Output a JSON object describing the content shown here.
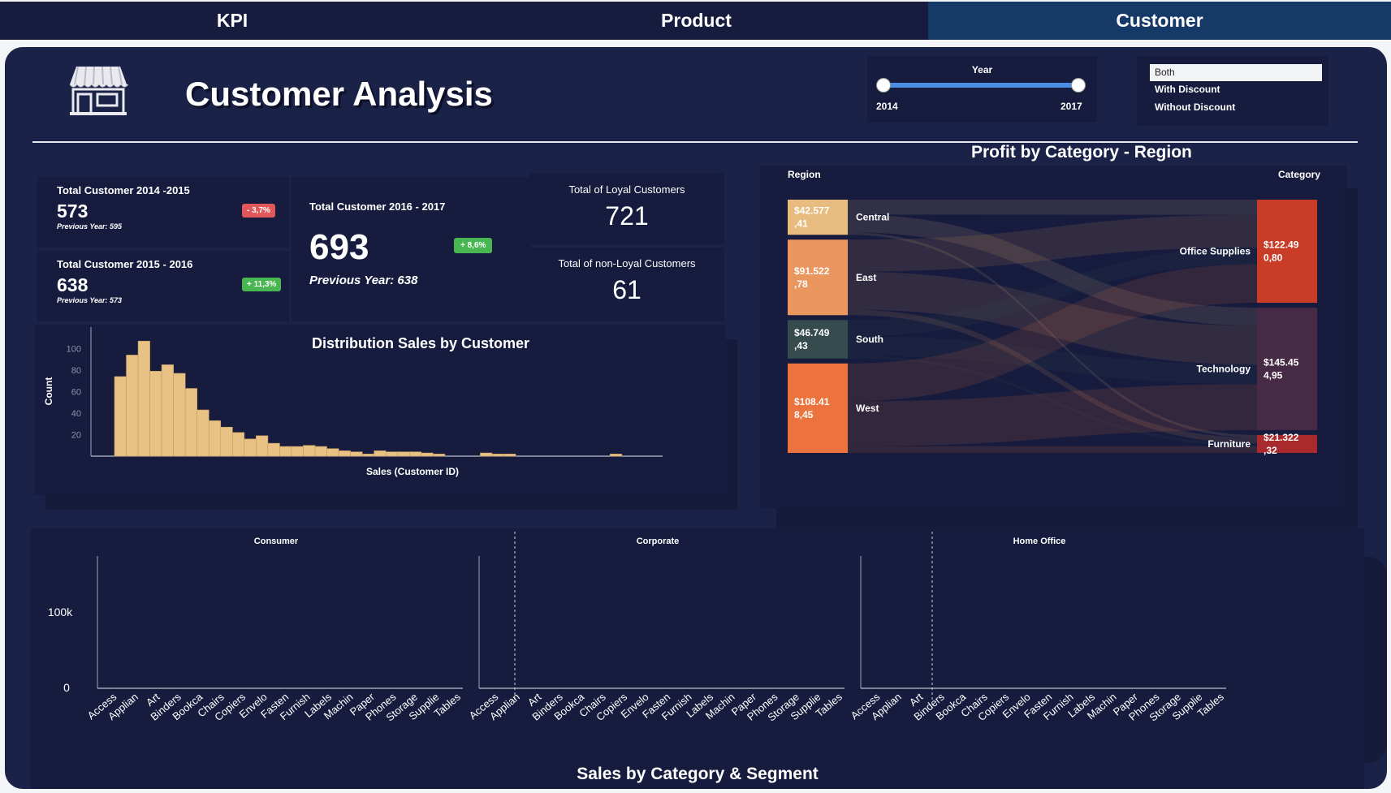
{
  "tabs": [
    {
      "label": "KPI",
      "active": false
    },
    {
      "label": "Product",
      "active": false
    },
    {
      "label": "Customer",
      "active": true
    }
  ],
  "header": {
    "title": "Customer Analysis",
    "store_icon": "store-icon"
  },
  "year_slider": {
    "label": "Year",
    "min_label": "2014",
    "max_label": "2017",
    "start": 2014,
    "end": 2017
  },
  "discount_filter": {
    "options": [
      "Both",
      "With Discount",
      "Without Discount"
    ],
    "selected": "Both"
  },
  "kpis": {
    "c1415": {
      "title": "Total Customer 2014 -2015",
      "value": "573",
      "prev": "Previous Year: 595",
      "change": "- 3,7%"
    },
    "c1516": {
      "title": "Total Customer 2015 - 2016",
      "value": "638",
      "prev": "Previous Year: 573",
      "change": "+ 11,3%"
    },
    "c1617": {
      "title": "Total Customer 2016 - 2017",
      "value": "693",
      "prev": "Previous Year: 638",
      "change": "+ 8,6%"
    },
    "loyal": {
      "title": "Total of Loyal Customers",
      "value": "721"
    },
    "nonloyal": {
      "title": "Total of non-Loyal Customers",
      "value": "61"
    }
  },
  "colors": {
    "bg": "#1b2248",
    "card": "#171c3f",
    "tab_active": "#163a67",
    "hist_bar": "#e8c284",
    "badge_red": "#e0585a",
    "badge_green": "#48b651",
    "region_central": "#e8bb7e",
    "region_east": "#e9975e",
    "region_south": "#354b4d",
    "region_west": "#ec733d",
    "cat_office": "#c93c27",
    "cat_tech": "#472a45",
    "cat_furn": "#a82a2c"
  },
  "chart_data": [
    {
      "type": "bar",
      "title": "Distribution Sales by Customer",
      "xlabel": "Sales (Customer ID)",
      "ylabel": "Count",
      "yticks": [
        20,
        40,
        60,
        80,
        100
      ],
      "ylim": [
        0,
        120
      ],
      "grid": false,
      "values": [
        74,
        94,
        107,
        79,
        85,
        77,
        63,
        43,
        33,
        27,
        22,
        16,
        19,
        12,
        9,
        9,
        10,
        9,
        7,
        5,
        4,
        2,
        5,
        4,
        4,
        4,
        3,
        2,
        0,
        0,
        0,
        3,
        2,
        2,
        0,
        0,
        0,
        0,
        0,
        0,
        0,
        0,
        2,
        0,
        0,
        0,
        0,
        0,
        0,
        0,
        0,
        0,
        0,
        0,
        2
      ]
    },
    {
      "type": "sankey",
      "title": "Profit by Category - Region",
      "left_header": "Region",
      "right_header": "Category",
      "regions": [
        {
          "name": "Central",
          "label_l1": "$42.577",
          "label_l2": ",41",
          "value": 42577.41
        },
        {
          "name": "East",
          "label_l1": "$91.522",
          "label_l2": ",78",
          "value": 91522.78
        },
        {
          "name": "South",
          "label_l1": "$46.749",
          "label_l2": ",43",
          "value": 46749.43
        },
        {
          "name": "West",
          "label_l1": "$108.41",
          "label_l2": "8,45",
          "value": 108418.45
        }
      ],
      "categories": [
        {
          "name": "Office Supplies",
          "label_l1": "$122.49",
          "label_l2": "0,80",
          "value": 122490.8
        },
        {
          "name": "Technology",
          "label_l1": "$145.45",
          "label_l2": "4,95",
          "value": 145454.95
        },
        {
          "name": "Furniture",
          "label_l1": "$21.322",
          "label_l2": ",32",
          "value": 21322.32
        }
      ]
    },
    {
      "type": "bar",
      "title": "Sales by Category & Segment",
      "ytick_labels": [
        "0",
        "100k"
      ],
      "ylim": [
        0,
        175000
      ],
      "categories": [
        "Accessories",
        "Appliances",
        "Art",
        "Binders",
        "Bookcases",
        "Chairs",
        "Copiers",
        "Envelopes",
        "Fasteners",
        "Furnishings",
        "Labels",
        "Machines",
        "Paper",
        "Phones",
        "Storage",
        "Supplies",
        "Tables"
      ],
      "tick_labels": [
        "Access",
        "Applian",
        "Art",
        "Binders",
        "Bookca",
        "Chairs",
        "Copiers",
        "Envelo",
        "Fasten",
        "Furnish",
        "Labels",
        "Machin",
        "Paper",
        "Phones",
        "Storage",
        "Supplie",
        "Tables"
      ],
      "bar_colors": [
        "#adf5ff",
        "#b9a932",
        "#6a3ea6",
        "#9cc6cf",
        "#8fc59a",
        "#c0958c",
        "#ffbe96",
        "#ffbde8",
        "#b9a932",
        "#6a3ea6",
        "#9cc6cf",
        "#8fc59a",
        "#c0958c",
        "#c0958c",
        "#ffbe96",
        "#ffbde8",
        "#adf5ff"
      ],
      "series": [
        {
          "name": "Consumer",
          "values": [
            0,
            0,
            0,
            0,
            0,
            0,
            0,
            0,
            0,
            0,
            0,
            0,
            0,
            0,
            0,
            0,
            0
          ]
        },
        {
          "name": "Corporate",
          "values": [
            0,
            0,
            0,
            0,
            0,
            0,
            0,
            0,
            0,
            0,
            0,
            0,
            0,
            0,
            0,
            0,
            0
          ]
        },
        {
          "name": "Home Office",
          "values": [
            0,
            0,
            0,
            0,
            0,
            0,
            0,
            0,
            0,
            0,
            0,
            0,
            0,
            0,
            0,
            0,
            0
          ]
        }
      ]
    }
  ]
}
